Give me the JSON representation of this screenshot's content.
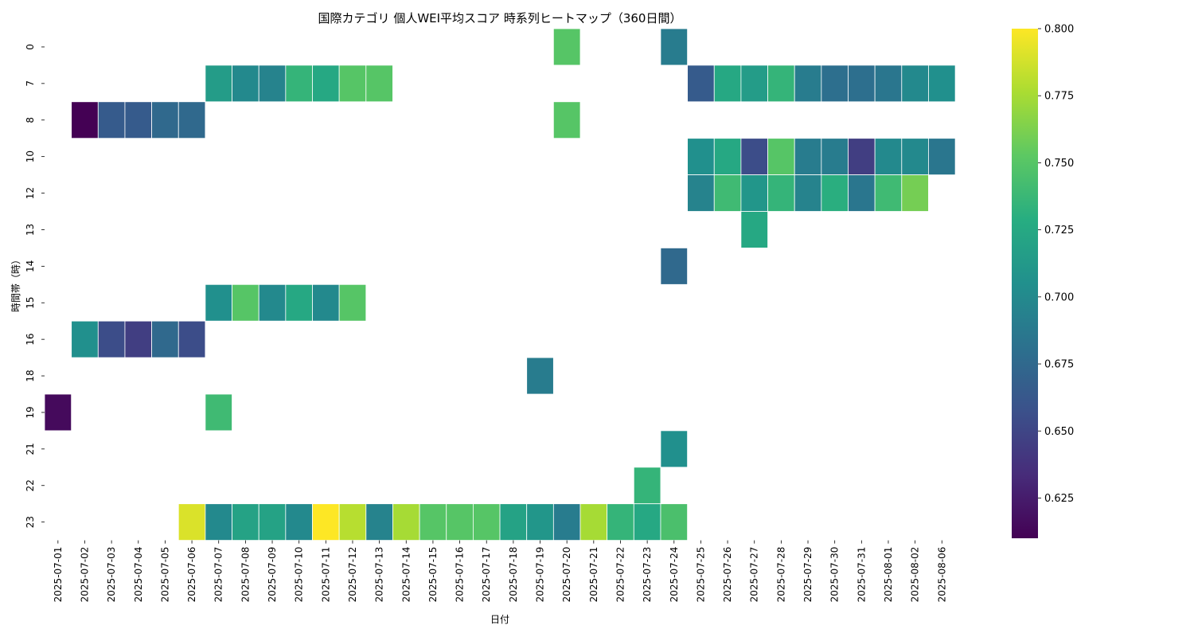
{
  "chart_data": {
    "type": "heatmap",
    "title": "国際カテゴリ 個人WEI平均スコア 時系列ヒートマップ（360日間）",
    "xlabel": "日付",
    "ylabel": "時間帯（時）",
    "x": [
      "2025-07-01",
      "2025-07-02",
      "2025-07-03",
      "2025-07-04",
      "2025-07-05",
      "2025-07-06",
      "2025-07-07",
      "2025-07-08",
      "2025-07-09",
      "2025-07-10",
      "2025-07-11",
      "2025-07-12",
      "2025-07-13",
      "2025-07-14",
      "2025-07-15",
      "2025-07-16",
      "2025-07-17",
      "2025-07-18",
      "2025-07-19",
      "2025-07-20",
      "2025-07-21",
      "2025-07-22",
      "2025-07-23",
      "2025-07-24",
      "2025-07-25",
      "2025-07-26",
      "2025-07-27",
      "2025-07-28",
      "2025-07-29",
      "2025-07-30",
      "2025-07-31",
      "2025-08-01",
      "2025-08-02",
      "2025-08-06"
    ],
    "y": [
      "0",
      "7",
      "8",
      "10",
      "12",
      "13",
      "14",
      "15",
      "16",
      "18",
      "19",
      "21",
      "22",
      "23"
    ],
    "colormap": "viridis",
    "vmin": 0.61,
    "vmax": 0.8,
    "colorbar_ticks": [
      "0.625",
      "0.650",
      "0.675",
      "0.700",
      "0.725",
      "0.750",
      "0.775",
      "0.800"
    ],
    "values": [
      [
        null,
        null,
        null,
        null,
        null,
        null,
        null,
        null,
        null,
        null,
        null,
        null,
        null,
        null,
        null,
        null,
        null,
        null,
        null,
        0.75,
        null,
        null,
        null,
        0.69,
        null,
        null,
        null,
        null,
        null,
        null,
        null,
        null,
        null,
        null
      ],
      [
        null,
        null,
        null,
        null,
        null,
        null,
        0.715,
        0.7,
        0.695,
        0.735,
        0.725,
        0.75,
        0.75,
        null,
        null,
        null,
        null,
        null,
        null,
        null,
        null,
        null,
        null,
        null,
        0.665,
        0.725,
        0.715,
        0.735,
        0.69,
        0.68,
        0.68,
        0.685,
        0.7,
        0.705
      ],
      [
        null,
        0.61,
        0.665,
        0.665,
        0.675,
        0.675,
        null,
        null,
        null,
        null,
        null,
        null,
        null,
        null,
        null,
        null,
        null,
        null,
        null,
        0.75,
        null,
        null,
        null,
        null,
        null,
        null,
        null,
        null,
        null,
        null,
        null,
        null,
        null,
        null
      ],
      [
        null,
        null,
        null,
        null,
        null,
        null,
        null,
        null,
        null,
        null,
        null,
        null,
        null,
        null,
        null,
        null,
        null,
        null,
        null,
        null,
        null,
        null,
        null,
        null,
        0.705,
        0.725,
        0.655,
        0.75,
        0.69,
        0.69,
        0.645,
        0.7,
        0.7,
        0.685
      ],
      [
        null,
        null,
        null,
        null,
        null,
        null,
        null,
        null,
        null,
        null,
        null,
        null,
        null,
        null,
        null,
        null,
        null,
        null,
        null,
        null,
        null,
        null,
        null,
        null,
        0.695,
        0.74,
        0.71,
        0.735,
        0.695,
        0.73,
        0.685,
        0.74,
        0.76,
        null
      ],
      [
        null,
        null,
        null,
        null,
        null,
        null,
        null,
        null,
        null,
        null,
        null,
        null,
        null,
        null,
        null,
        null,
        null,
        null,
        null,
        null,
        null,
        null,
        null,
        null,
        null,
        null,
        0.725,
        null,
        null,
        null,
        null,
        null,
        null,
        null
      ],
      [
        null,
        null,
        null,
        null,
        null,
        null,
        null,
        null,
        null,
        null,
        null,
        null,
        null,
        null,
        null,
        null,
        null,
        null,
        null,
        null,
        null,
        null,
        null,
        0.675,
        null,
        null,
        null,
        null,
        null,
        null,
        null,
        null,
        null,
        null
      ],
      [
        null,
        null,
        null,
        null,
        null,
        null,
        0.705,
        0.75,
        0.7,
        0.725,
        0.7,
        0.75,
        null,
        null,
        null,
        null,
        null,
        null,
        null,
        null,
        null,
        null,
        null,
        null,
        null,
        null,
        null,
        null,
        null,
        null,
        null,
        null,
        null,
        null
      ],
      [
        null,
        0.705,
        0.655,
        0.645,
        0.675,
        0.655,
        null,
        null,
        null,
        null,
        null,
        null,
        null,
        null,
        null,
        null,
        null,
        null,
        null,
        null,
        null,
        null,
        null,
        null,
        null,
        null,
        null,
        null,
        null,
        null,
        null,
        null,
        null,
        null
      ],
      [
        null,
        null,
        null,
        null,
        null,
        null,
        null,
        null,
        null,
        null,
        null,
        null,
        null,
        null,
        null,
        null,
        null,
        null,
        0.69,
        null,
        null,
        null,
        null,
        null,
        null,
        null,
        null,
        null,
        null,
        null,
        null,
        null,
        null,
        null
      ],
      [
        0.615,
        null,
        null,
        null,
        null,
        null,
        0.74,
        null,
        null,
        null,
        null,
        null,
        null,
        null,
        null,
        null,
        null,
        null,
        null,
        null,
        null,
        null,
        null,
        null,
        null,
        null,
        null,
        null,
        null,
        null,
        null,
        null,
        null,
        null
      ],
      [
        null,
        null,
        null,
        null,
        null,
        null,
        null,
        null,
        null,
        null,
        null,
        null,
        null,
        null,
        null,
        null,
        null,
        null,
        null,
        null,
        null,
        null,
        null,
        0.705,
        null,
        null,
        null,
        null,
        null,
        null,
        null,
        null,
        null,
        null
      ],
      [
        null,
        null,
        null,
        null,
        null,
        null,
        null,
        null,
        null,
        null,
        null,
        null,
        null,
        null,
        null,
        null,
        null,
        null,
        null,
        null,
        null,
        null,
        0.735,
        null,
        null,
        null,
        null,
        null,
        null,
        null,
        null,
        null,
        null,
        null
      ],
      [
        null,
        null,
        null,
        null,
        null,
        0.79,
        0.7,
        0.72,
        0.72,
        0.7,
        0.8,
        0.78,
        0.695,
        0.775,
        0.75,
        0.75,
        0.75,
        0.72,
        0.71,
        0.69,
        0.775,
        0.735,
        0.725,
        0.745,
        null,
        null,
        null,
        null,
        null,
        null,
        null,
        null,
        null,
        null
      ]
    ]
  }
}
